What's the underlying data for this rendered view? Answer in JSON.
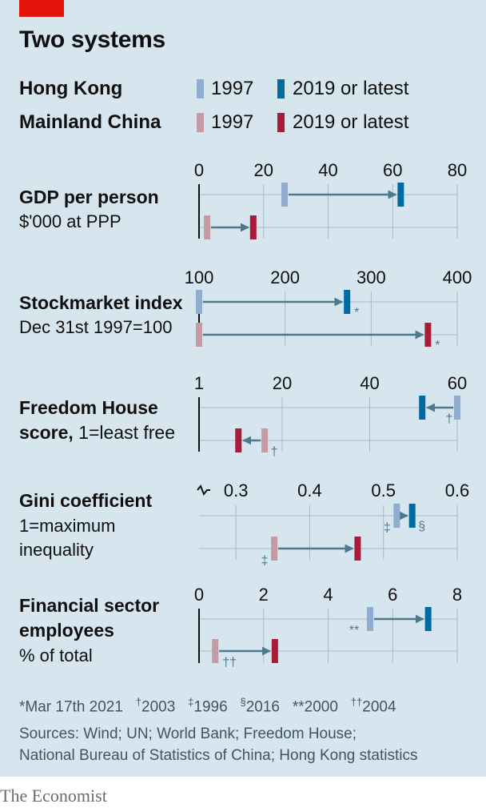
{
  "title": "Two systems",
  "legend": {
    "hk": {
      "name": "Hong Kong",
      "early": "1997",
      "late": "2019 or latest"
    },
    "cn": {
      "name": "Mainland China",
      "early": "1997",
      "late": "2019 or latest"
    }
  },
  "colors": {
    "hk_early": "#8fadcf",
    "hk_late": "#006ba2",
    "cn_early": "#c49aa4",
    "cn_late": "#a81c3a",
    "arrow": "#4d7a8b",
    "grid": "#a9b9c2",
    "axis": "#0f0f0f",
    "brand_red": "#e3120b"
  },
  "chart_data": [
    {
      "type": "dot-arrow",
      "title": "GDP per person",
      "subtitle": "$'000 at PPP",
      "ticks": [
        0,
        20,
        40,
        60,
        80
      ],
      "tick_labels": [
        "0",
        "20",
        "40",
        "60",
        "80"
      ],
      "xlim": [
        0,
        80
      ],
      "series": [
        {
          "name": "Hong Kong",
          "start": 26.5,
          "end": 62.5,
          "start_note": "",
          "end_note": ""
        },
        {
          "name": "Mainland China",
          "start": 2.5,
          "end": 16.8,
          "start_note": "",
          "end_note": ""
        }
      ]
    },
    {
      "type": "dot-arrow",
      "title": "Stockmarket index",
      "subtitle": "Dec 31st 1997=100",
      "ticks": [
        100,
        200,
        300,
        400
      ],
      "tick_labels": [
        "100",
        "200",
        "300",
        "400"
      ],
      "xlim": [
        100,
        400
      ],
      "series": [
        {
          "name": "Hong Kong",
          "start": 100,
          "end": 272,
          "start_note": "",
          "end_note": "*"
        },
        {
          "name": "Mainland China",
          "start": 100,
          "end": 366,
          "start_note": "",
          "end_note": "*"
        }
      ]
    },
    {
      "type": "dot-arrow",
      "title": "Freedom House",
      "title2": "score,",
      "title2_suffix": " 1=least free",
      "subtitle": "",
      "ticks": [
        1,
        20,
        40,
        60
      ],
      "tick_labels": [
        "1",
        "20",
        "40",
        "60"
      ],
      "xlim": [
        1,
        60
      ],
      "series": [
        {
          "name": "Hong Kong",
          "start": 60,
          "end": 52,
          "start_note": "†",
          "end_note": ""
        },
        {
          "name": "Mainland China",
          "start": 16,
          "end": 10,
          "start_note": "†",
          "end_note": ""
        }
      ]
    },
    {
      "type": "dot-arrow",
      "title": "Gini coefficient",
      "subtitle": "1=maximum",
      "subtitle2": "inequality",
      "axis_break": true,
      "ticks": [
        0.3,
        0.4,
        0.5,
        0.6
      ],
      "tick_labels": [
        "0.3",
        "0.4",
        "0.5",
        "0.6"
      ],
      "xlim": [
        0.25,
        0.6
      ],
      "series": [
        {
          "name": "Hong Kong",
          "start": 0.518,
          "end": 0.539,
          "start_note": "‡",
          "end_note": "§"
        },
        {
          "name": "Mainland China",
          "start": 0.352,
          "end": 0.465,
          "start_note": "‡",
          "end_note": ""
        }
      ]
    },
    {
      "type": "dot-arrow",
      "title": "Financial sector",
      "title2": "employees",
      "subtitle": "% of total",
      "ticks": [
        0,
        2,
        4,
        6,
        8
      ],
      "tick_labels": [
        "0",
        "2",
        "4",
        "6",
        "8"
      ],
      "xlim": [
        0,
        8
      ],
      "series": [
        {
          "name": "Hong Kong",
          "start": 5.3,
          "end": 7.1,
          "start_note": "**",
          "end_note": ""
        },
        {
          "name": "Mainland China",
          "start": 0.5,
          "end": 2.35,
          "start_note": "††",
          "end_note": ""
        }
      ]
    }
  ],
  "footnotes": [
    {
      "mark": "*",
      "text": "Mar 17th 2021"
    },
    {
      "mark": "†",
      "text": "2003"
    },
    {
      "mark": "‡",
      "text": "1996"
    },
    {
      "mark": "§",
      "text": "2016"
    },
    {
      "mark": "**",
      "text": "2000"
    },
    {
      "mark": "††",
      "text": "2004"
    }
  ],
  "sources_line1": "Sources: Wind; UN; World Bank; Freedom House;",
  "sources_line2": "National Bureau of Statistics of China; Hong Kong statistics",
  "brand": "The Economist"
}
